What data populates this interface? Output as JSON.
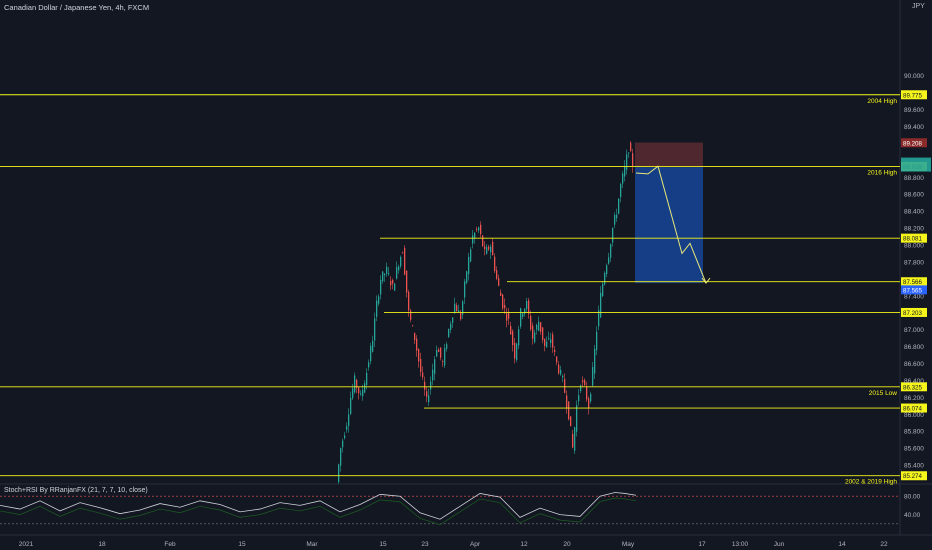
{
  "header": {
    "symbol_title": "Canadian Dollar / Japanese Yen, 4h, FXCM",
    "currency": "JPY"
  },
  "indicator": {
    "label": "Stoch+RSI By RRanjanFX (21, 7, 7, 10, close)",
    "ticks": [
      "80.00",
      "40.00"
    ]
  },
  "colors": {
    "background": "#131722",
    "level_line": "#f5f51b",
    "candle_up": "#26a69a",
    "candle_down": "#ef5350",
    "target_zone": "#1848a0",
    "stop_zone": "#5a2a30",
    "projection": "#e8e87a"
  },
  "chart_data": {
    "type": "candlestick",
    "title": "Canadian Dollar / Japanese Yen, 4h, FXCM",
    "ylim": [
      85.2,
      90.8
    ],
    "y_ticks": [
      "90.000",
      "89.600",
      "89.400",
      "88.800",
      "88.600",
      "88.400",
      "88.200",
      "88.000",
      "87.800",
      "87.400",
      "87.000",
      "86.800",
      "86.600",
      "86.400",
      "86.200",
      "86.000",
      "85.800",
      "85.600",
      "85.400"
    ],
    "x_ticks": [
      "2021",
      "18",
      "Feb",
      "15",
      "Mar",
      "15",
      "23",
      "Apr",
      "12",
      "20",
      "May",
      "17",
      "13:00",
      "Jun",
      "14",
      "22"
    ],
    "levels": [
      {
        "price": 89.775,
        "label_value": "89.775",
        "note": "2004 High",
        "x_start": 0
      },
      {
        "price": 88.928,
        "label_value": "88.928",
        "note": "2016 High",
        "x_start": 0
      },
      {
        "price": 88.081,
        "label_value": "88.081",
        "note": "",
        "x_start": 380
      },
      {
        "price": 87.566,
        "label_value": "87.566",
        "note": "",
        "x_start": 507
      },
      {
        "price": 87.203,
        "label_value": "87.203",
        "note": "",
        "x_start": 384
      },
      {
        "price": 86.325,
        "label_value": "86.325",
        "note": "2015 Low",
        "x_start": 0
      },
      {
        "price": 86.074,
        "label_value": "86.074",
        "note": "",
        "x_start": 424
      },
      {
        "price": 85.274,
        "label_value": "85.274",
        "note": "2002 & 2019 High",
        "x_start": 0
      }
    ],
    "price_tags": [
      {
        "value": "89.208",
        "price": 89.208,
        "kind": "stop"
      },
      {
        "value": "87.565",
        "price": 87.47,
        "kind": "target"
      }
    ],
    "position": {
      "entry": 88.92,
      "stop": 89.21,
      "target": 87.55
    },
    "projection_path": [
      {
        "x": 636,
        "y": 88.85
      },
      {
        "x": 648,
        "y": 88.84
      },
      {
        "x": 658,
        "y": 88.93
      },
      {
        "x": 682,
        "y": 87.9
      },
      {
        "x": 690,
        "y": 88.02
      },
      {
        "x": 706,
        "y": 87.55
      }
    ],
    "price_path": [
      {
        "x": 338,
        "y": 85.2
      },
      {
        "x": 342,
        "y": 85.6
      },
      {
        "x": 348,
        "y": 85.9
      },
      {
        "x": 352,
        "y": 86.2
      },
      {
        "x": 356,
        "y": 86.4
      },
      {
        "x": 362,
        "y": 86.2
      },
      {
        "x": 368,
        "y": 86.5
      },
      {
        "x": 374,
        "y": 86.9
      },
      {
        "x": 378,
        "y": 87.3
      },
      {
        "x": 382,
        "y": 87.6
      },
      {
        "x": 388,
        "y": 87.7
      },
      {
        "x": 394,
        "y": 87.5
      },
      {
        "x": 400,
        "y": 87.8
      },
      {
        "x": 404,
        "y": 87.95
      },
      {
        "x": 410,
        "y": 87.2
      },
      {
        "x": 416,
        "y": 86.9
      },
      {
        "x": 422,
        "y": 86.5
      },
      {
        "x": 428,
        "y": 86.15
      },
      {
        "x": 432,
        "y": 86.4
      },
      {
        "x": 438,
        "y": 86.8
      },
      {
        "x": 444,
        "y": 86.6
      },
      {
        "x": 450,
        "y": 87.0
      },
      {
        "x": 456,
        "y": 87.3
      },
      {
        "x": 462,
        "y": 87.15
      },
      {
        "x": 468,
        "y": 87.7
      },
      {
        "x": 474,
        "y": 88.1
      },
      {
        "x": 480,
        "y": 88.2
      },
      {
        "x": 486,
        "y": 87.9
      },
      {
        "x": 492,
        "y": 88.0
      },
      {
        "x": 498,
        "y": 87.6
      },
      {
        "x": 504,
        "y": 87.3
      },
      {
        "x": 510,
        "y": 87.1
      },
      {
        "x": 516,
        "y": 86.7
      },
      {
        "x": 522,
        "y": 87.2
      },
      {
        "x": 528,
        "y": 87.3
      },
      {
        "x": 534,
        "y": 86.9
      },
      {
        "x": 540,
        "y": 87.1
      },
      {
        "x": 546,
        "y": 86.8
      },
      {
        "x": 552,
        "y": 86.9
      },
      {
        "x": 558,
        "y": 86.6
      },
      {
        "x": 564,
        "y": 86.4
      },
      {
        "x": 570,
        "y": 86.0
      },
      {
        "x": 574,
        "y": 85.6
      },
      {
        "x": 578,
        "y": 86.1
      },
      {
        "x": 582,
        "y": 86.4
      },
      {
        "x": 586,
        "y": 86.3
      },
      {
        "x": 590,
        "y": 86.1
      },
      {
        "x": 594,
        "y": 86.5
      },
      {
        "x": 598,
        "y": 87.0
      },
      {
        "x": 602,
        "y": 87.4
      },
      {
        "x": 606,
        "y": 87.7
      },
      {
        "x": 610,
        "y": 87.9
      },
      {
        "x": 614,
        "y": 88.2
      },
      {
        "x": 618,
        "y": 88.4
      },
      {
        "x": 622,
        "y": 88.7
      },
      {
        "x": 626,
        "y": 88.9
      },
      {
        "x": 630,
        "y": 89.15
      },
      {
        "x": 634,
        "y": 88.95
      }
    ],
    "indicator_series": [
      {
        "x": 0,
        "y": 60
      },
      {
        "x": 20,
        "y": 52
      },
      {
        "x": 40,
        "y": 70
      },
      {
        "x": 60,
        "y": 48
      },
      {
        "x": 80,
        "y": 66
      },
      {
        "x": 100,
        "y": 55
      },
      {
        "x": 120,
        "y": 42
      },
      {
        "x": 140,
        "y": 50
      },
      {
        "x": 160,
        "y": 64
      },
      {
        "x": 180,
        "y": 56
      },
      {
        "x": 200,
        "y": 70
      },
      {
        "x": 220,
        "y": 62
      },
      {
        "x": 240,
        "y": 46
      },
      {
        "x": 260,
        "y": 52
      },
      {
        "x": 280,
        "y": 66
      },
      {
        "x": 300,
        "y": 60
      },
      {
        "x": 320,
        "y": 70
      },
      {
        "x": 340,
        "y": 46
      },
      {
        "x": 360,
        "y": 62
      },
      {
        "x": 380,
        "y": 84
      },
      {
        "x": 400,
        "y": 80
      },
      {
        "x": 420,
        "y": 44
      },
      {
        "x": 440,
        "y": 30
      },
      {
        "x": 460,
        "y": 58
      },
      {
        "x": 480,
        "y": 86
      },
      {
        "x": 500,
        "y": 78
      },
      {
        "x": 520,
        "y": 34
      },
      {
        "x": 540,
        "y": 54
      },
      {
        "x": 560,
        "y": 40
      },
      {
        "x": 580,
        "y": 36
      },
      {
        "x": 600,
        "y": 80
      },
      {
        "x": 615,
        "y": 88
      },
      {
        "x": 625,
        "y": 86
      },
      {
        "x": 636,
        "y": 82
      }
    ]
  }
}
